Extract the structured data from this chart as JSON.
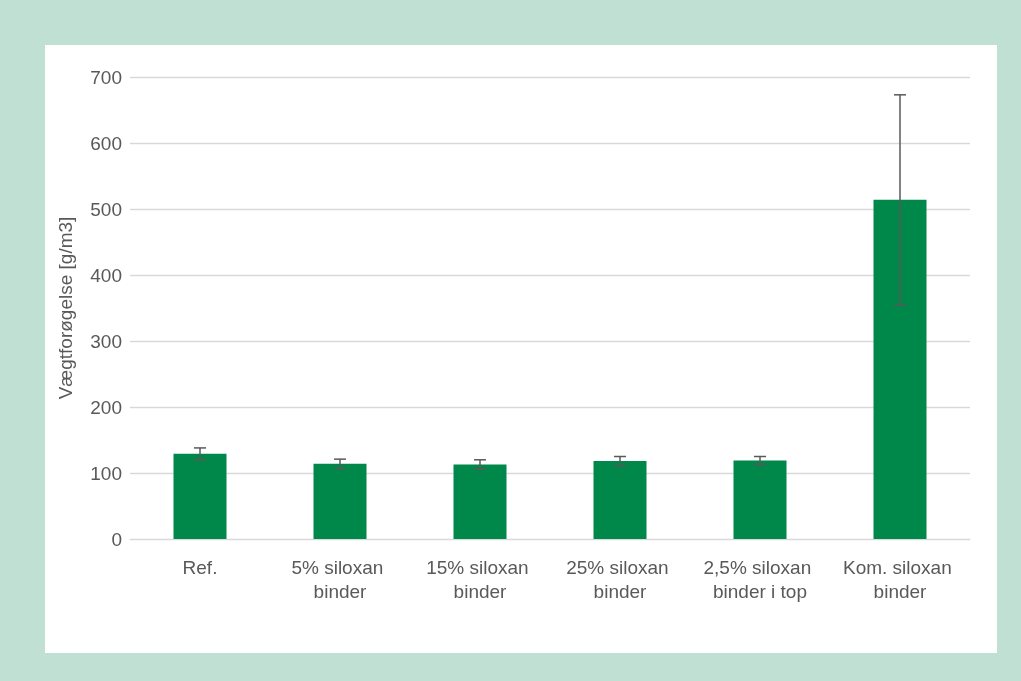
{
  "chart_data": {
    "type": "bar",
    "ylabel": "Vægtforøgelse [g/m3]",
    "categories": [
      "Ref.",
      "5% siloxan binder",
      "15% siloxan binder",
      "25% siloxan binder",
      "2,5% siloxan binder i top",
      "Kom. siloxan binder"
    ],
    "values": [
      129,
      114,
      113,
      118,
      119,
      514
    ],
    "errors": [
      9,
      7,
      7,
      7,
      6,
      159
    ],
    "color": "#00884a",
    "ylim": [
      0,
      700
    ],
    "yticks": [
      0,
      100,
      200,
      300,
      400,
      500,
      600,
      700
    ],
    "grid": "y"
  }
}
